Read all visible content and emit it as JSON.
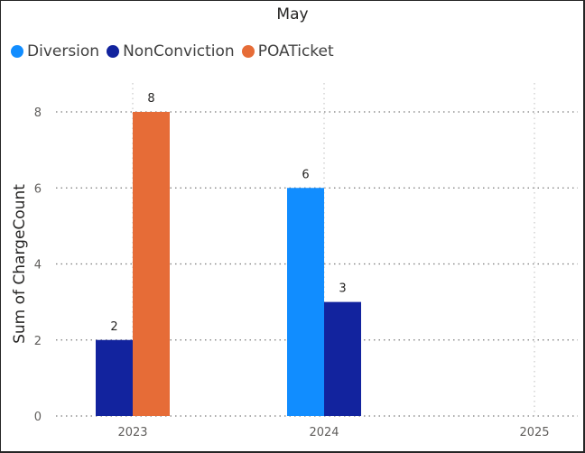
{
  "chart_data": {
    "type": "bar",
    "title": "May",
    "xlabel": "",
    "ylabel": "Sum of ChargeCount",
    "categories": [
      "2023",
      "2024",
      "2025"
    ],
    "ylim": [
      0,
      8
    ],
    "yticks": [
      0,
      2,
      4,
      6,
      8
    ],
    "legend_position": "top-left",
    "grid": true,
    "series": [
      {
        "name": "Diversion",
        "color": "#118DFF",
        "values": [
          null,
          6,
          null
        ]
      },
      {
        "name": "NonConviction",
        "color": "#12239E",
        "values": [
          2,
          3,
          null
        ]
      },
      {
        "name": "POATicket",
        "color": "#E66C37",
        "values": [
          8,
          null,
          null
        ]
      }
    ]
  }
}
